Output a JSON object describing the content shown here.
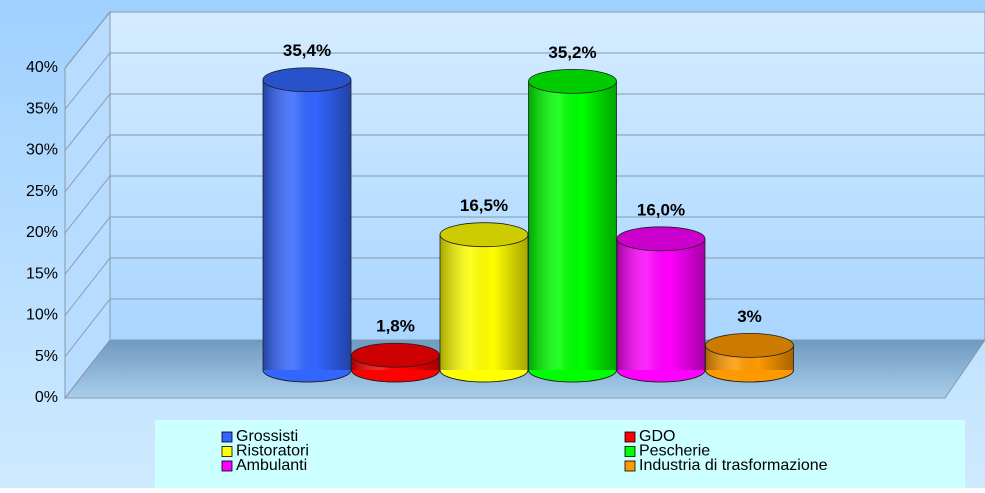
{
  "chart_data": {
    "type": "cylinder-bar",
    "categories": [
      "Grossisti",
      "GDO",
      "Ristoratori",
      "Pescherie",
      "Ambulanti",
      "Industria di trasformazione"
    ],
    "values": [
      35.4,
      1.8,
      16.5,
      35.2,
      16.0,
      3
    ],
    "value_labels": [
      "35,4%",
      "1,8%",
      "16,5%",
      "35,2%",
      "16,0%",
      "3%"
    ],
    "colors": [
      "#3366ff",
      "#ff0000",
      "#ffff00",
      "#00ff00",
      "#ff00ff",
      "#ff9900"
    ],
    "ylim": [
      0,
      40
    ],
    "yticks": [
      {
        "value": 0,
        "label": "0%"
      },
      {
        "value": 5,
        "label": "5%"
      },
      {
        "value": 10,
        "label": "10%"
      },
      {
        "value": 15,
        "label": "15%"
      },
      {
        "value": 20,
        "label": "20%"
      },
      {
        "value": 25,
        "label": "25%"
      },
      {
        "value": 30,
        "label": "30%"
      },
      {
        "value": 35,
        "label": "35%"
      },
      {
        "value": 40,
        "label": "40%"
      }
    ],
    "grid": true
  }
}
